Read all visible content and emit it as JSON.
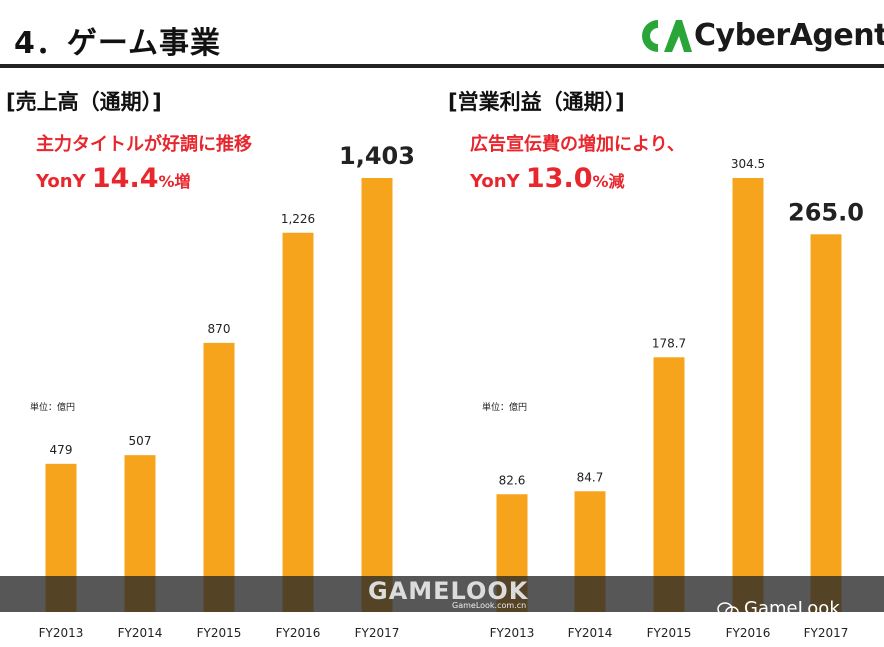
{
  "header": {
    "title": "4．ゲーム事業",
    "logo_text": "CyberAgent",
    "logo_mark": "CA"
  },
  "sections": [
    {
      "title": "[売上高（通期）]",
      "note_line1": "主力タイトルが好調に推移",
      "note_prefix": "YonY",
      "note_value": "14.4",
      "note_suffix": "%増",
      "unit": "単位：億円"
    },
    {
      "title": "[営業利益（通期）]",
      "note_line1": "広告宣伝費の増加により、",
      "note_prefix": "YonY",
      "note_value": "13.0",
      "note_suffix": "%減",
      "unit": "単位：億円"
    }
  ],
  "watermark": {
    "brand": "GAMELOOK",
    "site": "GameLook.com.cn",
    "wechat": "GameLook"
  },
  "colors": {
    "bar": "#f5a41b",
    "note": "#e8262d"
  },
  "chart_data": [
    {
      "type": "bar",
      "title": "[売上高（通期）]",
      "categories": [
        "FY2013",
        "FY2014",
        "FY2015",
        "FY2016",
        "FY2017"
      ],
      "values": [
        479,
        507,
        870,
        1226,
        1403
      ],
      "labels": [
        "479",
        "507",
        "870",
        "1,226",
        "1,403"
      ],
      "ylim": [
        0,
        1403
      ]
    },
    {
      "type": "bar",
      "title": "[営業利益（通期）]",
      "categories": [
        "FY2013",
        "FY2014",
        "FY2015",
        "FY2016",
        "FY2017"
      ],
      "values": [
        82.6,
        84.7,
        178.7,
        304.5,
        265.0
      ],
      "labels": [
        "82.6",
        "84.7",
        "178.7",
        "304.5",
        "265.0"
      ],
      "ylim": [
        0,
        304.5
      ]
    }
  ]
}
